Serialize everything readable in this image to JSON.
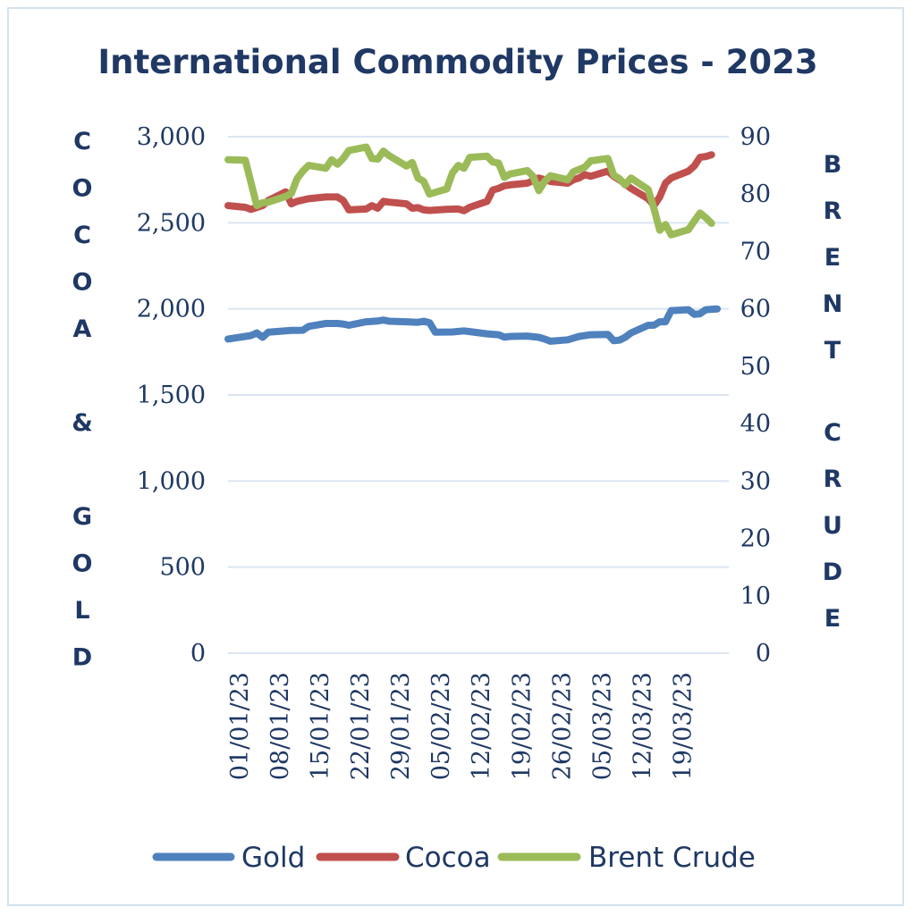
{
  "chart_data": {
    "type": "line",
    "title": "International Commodity Prices - 2023",
    "left_axis_label": "COCOA & GOLD",
    "right_axis_label": "BRENT CRUDE",
    "left_ylim": [
      0,
      3000
    ],
    "right_ylim": [
      0,
      90
    ],
    "left_ticks": [
      {
        "value": 0,
        "label": "0"
      },
      {
        "value": 500,
        "label": "500"
      },
      {
        "value": 1000,
        "label": "1,000"
      },
      {
        "value": 1500,
        "label": "1,500"
      },
      {
        "value": 2000,
        "label": "2,000"
      },
      {
        "value": 2500,
        "label": "2,500"
      },
      {
        "value": 3000,
        "label": "3,000"
      }
    ],
    "right_ticks": [
      {
        "value": 0,
        "label": "0"
      },
      {
        "value": 10,
        "label": "10"
      },
      {
        "value": 20,
        "label": "20"
      },
      {
        "value": 30,
        "label": "30"
      },
      {
        "value": 40,
        "label": "40"
      },
      {
        "value": 50,
        "label": "50"
      },
      {
        "value": 60,
        "label": "60"
      },
      {
        "value": 70,
        "label": "70"
      },
      {
        "value": 80,
        "label": "80"
      },
      {
        "value": 90,
        "label": "90"
      }
    ],
    "x_range": [
      "2022-12-30",
      "2023-03-27"
    ],
    "x_tick_labels": [
      {
        "date": "2023-01-01",
        "label": "01/01/23"
      },
      {
        "date": "2023-01-08",
        "label": "08/01/23"
      },
      {
        "date": "2023-01-15",
        "label": "15/01/23"
      },
      {
        "date": "2023-01-22",
        "label": "22/01/23"
      },
      {
        "date": "2023-01-29",
        "label": "29/01/23"
      },
      {
        "date": "2023-02-05",
        "label": "05/02/23"
      },
      {
        "date": "2023-02-12",
        "label": "12/02/23"
      },
      {
        "date": "2023-02-19",
        "label": "19/02/23"
      },
      {
        "date": "2023-02-26",
        "label": "26/02/23"
      },
      {
        "date": "2023-03-05",
        "label": "05/03/23"
      },
      {
        "date": "2023-03-12",
        "label": "12/03/23"
      },
      {
        "date": "2023-03-19",
        "label": "19/03/23"
      }
    ],
    "grid": true,
    "legend_position": "bottom",
    "series": [
      {
        "name": "Gold",
        "axis": "left",
        "color": "#4f81bd",
        "points": [
          [
            "2022-12-30",
            1825
          ],
          [
            "2023-01-02",
            1840
          ],
          [
            "2023-01-03",
            1845
          ],
          [
            "2023-01-04",
            1860
          ],
          [
            "2023-01-05",
            1835
          ],
          [
            "2023-01-06",
            1865
          ],
          [
            "2023-01-09",
            1872
          ],
          [
            "2023-01-10",
            1875
          ],
          [
            "2023-01-12",
            1876
          ],
          [
            "2023-01-13",
            1898
          ],
          [
            "2023-01-16",
            1915
          ],
          [
            "2023-01-18",
            1915
          ],
          [
            "2023-01-19",
            1912
          ],
          [
            "2023-01-20",
            1905
          ],
          [
            "2023-01-23",
            1925
          ],
          [
            "2023-01-25",
            1930
          ],
          [
            "2023-01-26",
            1935
          ],
          [
            "2023-01-27",
            1928
          ],
          [
            "2023-01-30",
            1925
          ],
          [
            "2023-02-01",
            1922
          ],
          [
            "2023-02-02",
            1928
          ],
          [
            "2023-02-03",
            1920
          ],
          [
            "2023-02-04",
            1865
          ],
          [
            "2023-02-07",
            1866
          ],
          [
            "2023-02-09",
            1872
          ],
          [
            "2023-02-10",
            1868
          ],
          [
            "2023-02-13",
            1855
          ],
          [
            "2023-02-15",
            1850
          ],
          [
            "2023-02-16",
            1836
          ],
          [
            "2023-02-17",
            1840
          ],
          [
            "2023-02-20",
            1842
          ],
          [
            "2023-02-22",
            1835
          ],
          [
            "2023-02-23",
            1825
          ],
          [
            "2023-02-24",
            1812
          ],
          [
            "2023-02-27",
            1820
          ],
          [
            "2023-02-28",
            1830
          ],
          [
            "2023-03-01",
            1840
          ],
          [
            "2023-03-03",
            1850
          ],
          [
            "2023-03-06",
            1852
          ],
          [
            "2023-03-07",
            1815
          ],
          [
            "2023-03-08",
            1818
          ],
          [
            "2023-03-09",
            1835
          ],
          [
            "2023-03-10",
            1860
          ],
          [
            "2023-03-13",
            1905
          ],
          [
            "2023-03-14",
            1905
          ],
          [
            "2023-03-15",
            1925
          ],
          [
            "2023-03-16",
            1925
          ],
          [
            "2023-03-17",
            1990
          ],
          [
            "2023-03-20",
            1995
          ],
          [
            "2023-03-21",
            1968
          ],
          [
            "2023-03-22",
            1972
          ],
          [
            "2023-03-23",
            1995
          ],
          [
            "2023-03-24",
            1998
          ],
          [
            "2023-03-25",
            2000
          ]
        ]
      },
      {
        "name": "Cocoa",
        "axis": "left",
        "color": "#c0504d",
        "points": [
          [
            "2022-12-30",
            2600
          ],
          [
            "2023-01-02",
            2590
          ],
          [
            "2023-01-03",
            2578
          ],
          [
            "2023-01-05",
            2600
          ],
          [
            "2023-01-06",
            2630
          ],
          [
            "2023-01-09",
            2680
          ],
          [
            "2023-01-10",
            2610
          ],
          [
            "2023-01-11",
            2625
          ],
          [
            "2023-01-13",
            2640
          ],
          [
            "2023-01-16",
            2650
          ],
          [
            "2023-01-18",
            2650
          ],
          [
            "2023-01-19",
            2630
          ],
          [
            "2023-01-20",
            2575
          ],
          [
            "2023-01-23",
            2580
          ],
          [
            "2023-01-24",
            2600
          ],
          [
            "2023-01-25",
            2585
          ],
          [
            "2023-01-26",
            2625
          ],
          [
            "2023-01-27",
            2620
          ],
          [
            "2023-01-30",
            2610
          ],
          [
            "2023-01-31",
            2585
          ],
          [
            "2023-02-01",
            2588
          ],
          [
            "2023-02-02",
            2575
          ],
          [
            "2023-02-03",
            2572
          ],
          [
            "2023-02-06",
            2578
          ],
          [
            "2023-02-08",
            2580
          ],
          [
            "2023-02-09",
            2570
          ],
          [
            "2023-02-10",
            2590
          ],
          [
            "2023-02-13",
            2625
          ],
          [
            "2023-02-14",
            2690
          ],
          [
            "2023-02-15",
            2700
          ],
          [
            "2023-02-16",
            2715
          ],
          [
            "2023-02-17",
            2720
          ],
          [
            "2023-02-20",
            2730
          ],
          [
            "2023-02-22",
            2760
          ],
          [
            "2023-02-24",
            2740
          ],
          [
            "2023-02-27",
            2730
          ],
          [
            "2023-02-28",
            2750
          ],
          [
            "2023-03-01",
            2760
          ],
          [
            "2023-03-02",
            2780
          ],
          [
            "2023-03-03",
            2770
          ],
          [
            "2023-03-06",
            2800
          ],
          [
            "2023-03-07",
            2770
          ],
          [
            "2023-03-08",
            2750
          ],
          [
            "2023-03-10",
            2700
          ],
          [
            "2023-03-13",
            2640
          ],
          [
            "2023-03-14",
            2600
          ],
          [
            "2023-03-15",
            2650
          ],
          [
            "2023-03-16",
            2730
          ],
          [
            "2023-03-17",
            2760
          ],
          [
            "2023-03-20",
            2800
          ],
          [
            "2023-03-21",
            2830
          ],
          [
            "2023-03-22",
            2880
          ],
          [
            "2023-03-23",
            2885
          ],
          [
            "2023-03-24",
            2895
          ]
        ]
      },
      {
        "name": "Brent Crude",
        "axis": "right",
        "color": "#9bbb59",
        "points": [
          [
            "2022-12-30",
            86
          ],
          [
            "2023-01-02",
            85.9
          ],
          [
            "2023-01-03",
            82
          ],
          [
            "2023-01-04",
            78
          ],
          [
            "2023-01-05",
            78.5
          ],
          [
            "2023-01-06",
            78.6
          ],
          [
            "2023-01-09",
            79.6
          ],
          [
            "2023-01-10",
            80.1
          ],
          [
            "2023-01-11",
            82.7
          ],
          [
            "2023-01-12",
            84
          ],
          [
            "2023-01-13",
            85
          ],
          [
            "2023-01-16",
            84.5
          ],
          [
            "2023-01-17",
            86
          ],
          [
            "2023-01-18",
            85.2
          ],
          [
            "2023-01-19",
            86.2
          ],
          [
            "2023-01-20",
            87.6
          ],
          [
            "2023-01-23",
            88.2
          ],
          [
            "2023-01-24",
            86.2
          ],
          [
            "2023-01-25",
            86.1
          ],
          [
            "2023-01-26",
            87.5
          ],
          [
            "2023-01-27",
            86.7
          ],
          [
            "2023-01-30",
            84.9
          ],
          [
            "2023-01-31",
            85.5
          ],
          [
            "2023-02-01",
            82.8
          ],
          [
            "2023-02-02",
            82.2
          ],
          [
            "2023-02-03",
            80
          ],
          [
            "2023-02-06",
            80.9
          ],
          [
            "2023-02-07",
            83.7
          ],
          [
            "2023-02-08",
            85
          ],
          [
            "2023-02-09",
            84.5
          ],
          [
            "2023-02-10",
            86.4
          ],
          [
            "2023-02-13",
            86.6
          ],
          [
            "2023-02-14",
            85.6
          ],
          [
            "2023-02-15",
            85.4
          ],
          [
            "2023-02-16",
            82.9
          ],
          [
            "2023-02-17",
            83.5
          ],
          [
            "2023-02-20",
            84.1
          ],
          [
            "2023-02-21",
            83.1
          ],
          [
            "2023-02-22",
            80.6
          ],
          [
            "2023-02-23",
            82.2
          ],
          [
            "2023-02-24",
            83.2
          ],
          [
            "2023-02-27",
            82.5
          ],
          [
            "2023-02-28",
            83.9
          ],
          [
            "2023-03-02",
            84.7
          ],
          [
            "2023-03-03",
            85.8
          ],
          [
            "2023-03-06",
            86.2
          ],
          [
            "2023-03-07",
            83.3
          ],
          [
            "2023-03-08",
            82.7
          ],
          [
            "2023-03-09",
            81.6
          ],
          [
            "2023-03-10",
            82.8
          ],
          [
            "2023-03-13",
            80.8
          ],
          [
            "2023-03-14",
            77.5
          ],
          [
            "2023-03-15",
            73.7
          ],
          [
            "2023-03-16",
            74.7
          ],
          [
            "2023-03-17",
            72.9
          ],
          [
            "2023-03-20",
            73.8
          ],
          [
            "2023-03-21",
            75.3
          ],
          [
            "2023-03-22",
            76.7
          ],
          [
            "2023-03-23",
            75.9
          ],
          [
            "2023-03-24",
            74.9
          ]
        ]
      }
    ]
  }
}
